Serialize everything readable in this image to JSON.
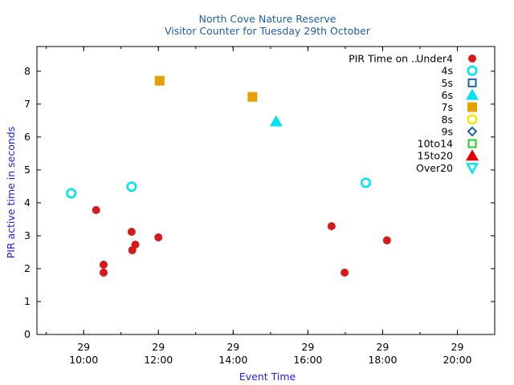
{
  "chart_data": {
    "type": "scatter",
    "title": "North Cove Nature Reserve",
    "subtitle": "Visitor Counter for Tuesday 29th October",
    "xlabel": "Event Time",
    "ylabel": "PIR active time in seconds",
    "xlim": [
      "08:45",
      "21:00"
    ],
    "ylim": [
      0,
      8.75
    ],
    "y_ticks": [
      0,
      1,
      2,
      3,
      4,
      5,
      6,
      7,
      8
    ],
    "x_ticks": [
      {
        "day": "29",
        "time": "10:00",
        "value": "10:00"
      },
      {
        "day": "29",
        "time": "12:00",
        "value": "12:00"
      },
      {
        "day": "29",
        "time": "14:00",
        "value": "14:00"
      },
      {
        "day": "29",
        "time": "16:00",
        "value": "16:00"
      },
      {
        "day": "29",
        "time": "18:00",
        "value": "18:00"
      },
      {
        "day": "29",
        "time": "20:00",
        "value": "20:00"
      }
    ],
    "grid": false,
    "legend_position": "top-right",
    "legend_title": "PIR Time on ..",
    "series": [
      {
        "name": "Under4",
        "marker": "circle-filled",
        "color": "#d7191c",
        "points": [
          [
            "10:20",
            3.78
          ],
          [
            "10:32",
            2.12
          ],
          [
            "10:32",
            1.88
          ],
          [
            "11:17",
            3.12
          ],
          [
            "11:18",
            2.56
          ],
          [
            "11:23",
            2.73
          ],
          [
            "12:00",
            2.95
          ],
          [
            "16:38",
            3.29
          ],
          [
            "16:59",
            1.88
          ],
          [
            "18:07",
            2.86
          ]
        ]
      },
      {
        "name": "4s",
        "marker": "circle-open",
        "color": "#00e5ee",
        "points": [
          [
            "09:40",
            4.29
          ],
          [
            "11:17",
            4.49
          ],
          [
            "17:33",
            4.61
          ]
        ]
      },
      {
        "name": "5s",
        "marker": "square-open",
        "color": "#1f5fa8",
        "points": []
      },
      {
        "name": "6s",
        "marker": "triangle-filled",
        "color": "#00e5ee",
        "points": [
          [
            "15:09",
            6.47
          ]
        ]
      },
      {
        "name": "7s",
        "marker": "square-filled",
        "color": "#e6a100",
        "points": [
          [
            "12:02",
            7.71
          ],
          [
            "14:31",
            7.22
          ]
        ]
      },
      {
        "name": "8s",
        "marker": "circle-open",
        "color": "#ffe600",
        "points": []
      },
      {
        "name": "9s",
        "marker": "diamond-open",
        "color": "#1f5fa8",
        "points": []
      },
      {
        "name": "10to14",
        "marker": "square-open",
        "color": "#22cc22",
        "points": []
      },
      {
        "name": "15to20",
        "marker": "triangle-filled",
        "color": "#e60000",
        "points": []
      },
      {
        "name": "Over20",
        "marker": "triangle-down-open",
        "color": "#00e5ee",
        "points": []
      }
    ]
  }
}
